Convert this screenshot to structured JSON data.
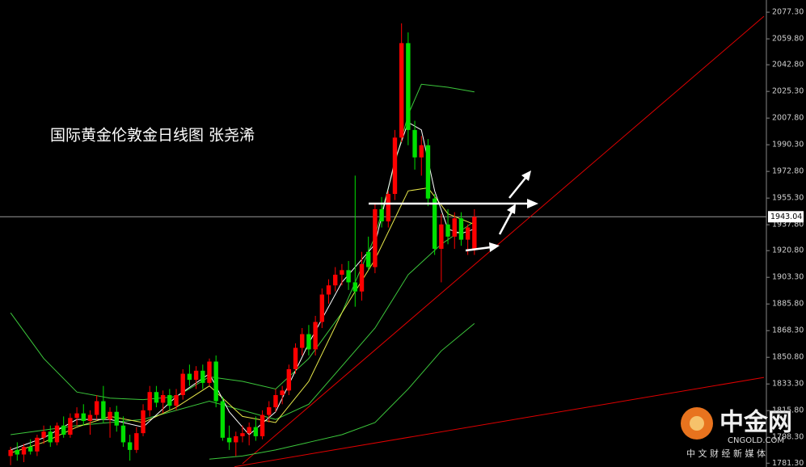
{
  "chart_data": {
    "type": "candlestick",
    "title": "国际黄金伦敦金日线图 张尧浠",
    "ylim": [
      1778.8,
      2085.3
    ],
    "xlim": [
      -1.6,
      113.7
    ],
    "yticks": [
      {
        "value": 2077.3,
        "label": "2077.30"
      },
      {
        "value": 2059.8,
        "label": "2059.80"
      },
      {
        "value": 2042.8,
        "label": "2042.80"
      },
      {
        "value": 2025.3,
        "label": "2025.30"
      },
      {
        "value": 2007.8,
        "label": "2007.80"
      },
      {
        "value": 1990.3,
        "label": "1990.30"
      },
      {
        "value": 1972.8,
        "label": "1972.80"
      },
      {
        "value": 1955.3,
        "label": "1955.30"
      },
      {
        "value": 1937.8,
        "label": "1937.80"
      },
      {
        "value": 1920.8,
        "label": "1920.80"
      },
      {
        "value": 1903.3,
        "label": "1903.30"
      },
      {
        "value": 1885.8,
        "label": "1885.80"
      },
      {
        "value": 1868.3,
        "label": "1868.30"
      },
      {
        "value": 1850.8,
        "label": "1850.80"
      },
      {
        "value": 1833.3,
        "label": "1833.30"
      },
      {
        "value": 1815.8,
        "label": "1815.80"
      },
      {
        "value": 1798.3,
        "label": "1798.30"
      },
      {
        "value": 1781.3,
        "label": "1781.30"
      }
    ],
    "up_color": "#ff0000",
    "down_color": "#00e000",
    "ohlc": {
      "open": [
        1786,
        1790,
        1787,
        1792,
        1789,
        1798,
        1802,
        1795,
        1806,
        1800,
        1811,
        1814,
        1809,
        1813,
        1822,
        1810,
        1815,
        1806,
        1795,
        1790,
        1801,
        1816,
        1828,
        1821,
        1826,
        1819,
        1826,
        1840,
        1836,
        1842,
        1834,
        1848,
        1822,
        1798,
        1795,
        1799,
        1801,
        1805,
        1799,
        1813,
        1818,
        1826,
        1829,
        1843,
        1857,
        1866,
        1856,
        1874,
        1892,
        1898,
        1905,
        1908,
        1900,
        1894,
        1920,
        1910,
        1948,
        1940,
        1958,
        1995,
        2057,
        2000,
        1982,
        1990,
        1955,
        1922,
        1938,
        1930,
        1942,
        1928,
        1922
      ],
      "high": [
        1792,
        1795,
        1794,
        1797,
        1800,
        1806,
        1806,
        1808,
        1812,
        1814,
        1818,
        1820,
        1816,
        1826,
        1832,
        1818,
        1819,
        1812,
        1800,
        1805,
        1820,
        1832,
        1832,
        1829,
        1830,
        1830,
        1843,
        1846,
        1845,
        1846,
        1850,
        1852,
        1825,
        1806,
        1802,
        1806,
        1808,
        1812,
        1816,
        1822,
        1830,
        1832,
        1846,
        1860,
        1870,
        1872,
        1878,
        1896,
        1902,
        1910,
        1912,
        1914,
        1970,
        1920,
        1930,
        1952,
        1956,
        1960,
        2000,
        2070,
        2064,
        2006,
        1996,
        1994,
        1958,
        1945,
        1948,
        1946,
        1946,
        1938,
        1948
      ],
      "low": [
        1780,
        1783,
        1782,
        1787,
        1786,
        1794,
        1792,
        1793,
        1798,
        1798,
        1806,
        1806,
        1800,
        1810,
        1808,
        1798,
        1802,
        1792,
        1783,
        1788,
        1799,
        1812,
        1818,
        1814,
        1816,
        1816,
        1823,
        1832,
        1830,
        1830,
        1832,
        1818,
        1796,
        1790,
        1786,
        1795,
        1793,
        1796,
        1797,
        1808,
        1815,
        1820,
        1826,
        1840,
        1852,
        1852,
        1852,
        1870,
        1886,
        1894,
        1898,
        1895,
        1884,
        1888,
        1908,
        1906,
        1936,
        1936,
        1954,
        1992,
        1990,
        1974,
        1970,
        1950,
        1918,
        1900,
        1925,
        1922,
        1924,
        1918,
        1918
      ],
      "close": [
        1790,
        1787,
        1792,
        1789,
        1798,
        1802,
        1795,
        1806,
        1800,
        1811,
        1814,
        1809,
        1813,
        1822,
        1810,
        1815,
        1806,
        1795,
        1790,
        1801,
        1816,
        1828,
        1821,
        1826,
        1819,
        1826,
        1840,
        1836,
        1842,
        1834,
        1848,
        1822,
        1798,
        1795,
        1799,
        1801,
        1805,
        1799,
        1813,
        1818,
        1826,
        1829,
        1843,
        1857,
        1866,
        1856,
        1874,
        1892,
        1898,
        1905,
        1908,
        1900,
        1894,
        1912,
        1910,
        1948,
        1940,
        1958,
        1995,
        2057,
        2000,
        1982,
        1990,
        1955,
        1922,
        1938,
        1930,
        1942,
        1928,
        1936,
        1943.04
      ]
    },
    "lines": [
      {
        "color": "#3cc83c",
        "x": [
          0,
          5,
          10,
          15,
          20,
          25,
          30,
          35,
          40,
          45,
          50,
          55,
          60,
          62,
          66,
          70
        ],
        "values": [
          1880,
          1850,
          1828,
          1824,
          1823,
          1825,
          1838,
          1835,
          1830,
          1850,
          1880,
          1930,
          2010,
          2030,
          2028,
          2025
        ]
      },
      {
        "color": "#3cc83c",
        "x": [
          0,
          10,
          20,
          30,
          40,
          45,
          50,
          55,
          60,
          65,
          70
        ],
        "values": [
          1800,
          1806,
          1810,
          1822,
          1810,
          1820,
          1845,
          1870,
          1905,
          1925,
          1940
        ]
      },
      {
        "color": "#3cc83c",
        "x": [
          30,
          35,
          40,
          45,
          50,
          55,
          60,
          65,
          70
        ],
        "values": [
          1784,
          1786,
          1790,
          1795,
          1800,
          1808,
          1830,
          1855,
          1873
        ]
      },
      {
        "color": "#e8e84a",
        "x": [
          0,
          5,
          10,
          15,
          20,
          25,
          30,
          35,
          40,
          45,
          50,
          55,
          60,
          63,
          66,
          70
        ],
        "values": [
          1788,
          1795,
          1805,
          1812,
          1808,
          1818,
          1832,
          1812,
          1808,
          1835,
          1880,
          1915,
          1960,
          1962,
          1945,
          1938
        ]
      },
      {
        "color": "#ffffff",
        "x": [
          0,
          5,
          10,
          15,
          20,
          25,
          30,
          33,
          36,
          40,
          45,
          50,
          55,
          58,
          60,
          62,
          64,
          66,
          68,
          70
        ],
        "values": [
          1790,
          1798,
          1810,
          1810,
          1805,
          1825,
          1840,
          1815,
          1800,
          1815,
          1860,
          1900,
          1925,
          1980,
          2005,
          2000,
          1960,
          1935,
          1932,
          1935
        ]
      }
    ],
    "trendlines": [
      {
        "color": "#e00000",
        "x": [
          35,
          113.7
        ],
        "values": [
          1781,
          2074.6
        ]
      },
      {
        "color": "#e00000",
        "x": [
          33.8,
          113.7
        ],
        "values": [
          1779,
          1837.6
        ]
      }
    ],
    "last_price": 1943.04,
    "watermark": {
      "brand": "中金网",
      "domain": "CNGOLD.COM",
      "slogan": "中 文 财 经 新 媒 体"
    }
  }
}
